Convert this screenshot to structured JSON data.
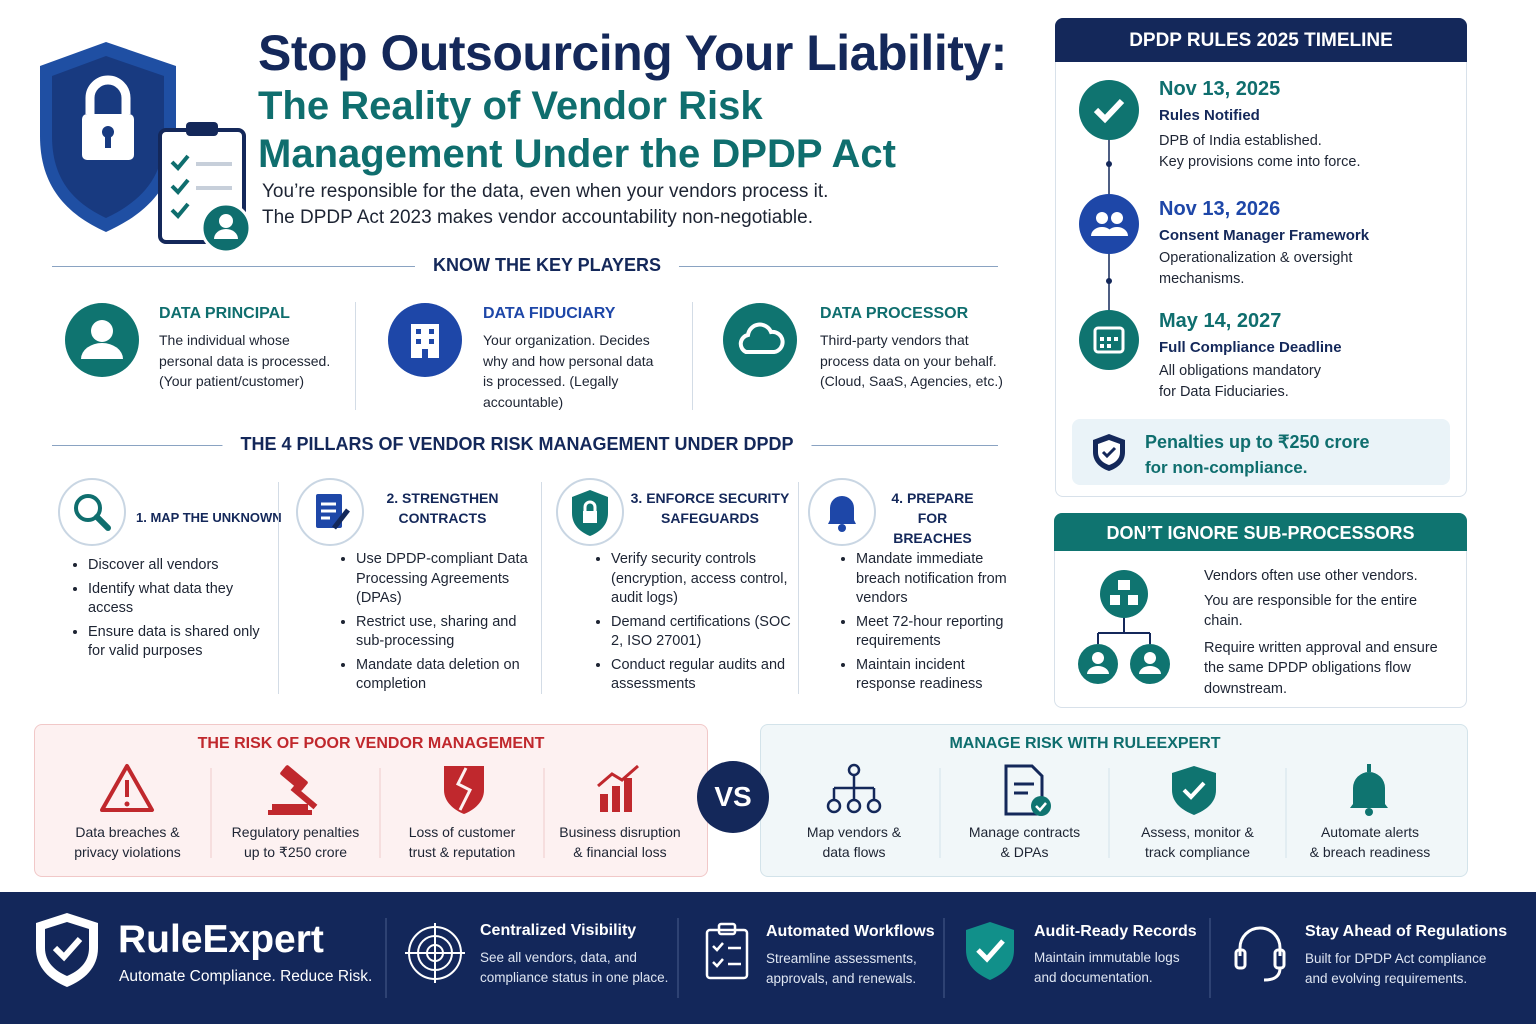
{
  "header": {
    "title": "Stop Outsourcing Your Liability:",
    "subtitle": "The Reality of Vendor Risk Management Under the DPDP Act",
    "intro": [
      "You’re responsible for the data, even when your vendors process it.",
      "The DPDP Act 2023 makes vendor accountability non-negotiable."
    ]
  },
  "key_players": {
    "heading": "KNOW THE KEY PLAYERS",
    "items": [
      {
        "title": "DATA PRINCIPAL",
        "text": "The individual whose personal data is processed.",
        "note": "(Your patient/customer)"
      },
      {
        "title": "DATA FIDUCIARY",
        "text": "Your organization. Decides why and how personal data is processed.",
        "note": "(Legally accountable)"
      },
      {
        "title": "DATA PROCESSOR",
        "text": "Third-party vendors that process data on your behalf.",
        "note": "(Cloud, SaaS, Agencies, etc.)"
      }
    ]
  },
  "pillars": {
    "heading": "THE 4 PILLARS OF VENDOR RISK MANAGEMENT UNDER DPDP",
    "items": [
      {
        "title": "1. MAP THE UNKNOWN",
        "bullets": [
          "Discover all vendors",
          "Identify what data they access",
          "Ensure data is shared only for valid purposes"
        ]
      },
      {
        "title": "2. STRENGTHEN CONTRACTS",
        "bullets": [
          "Use DPDP-compliant Data Processing Agreements (DPAs)",
          "Restrict use, sharing and sub-processing",
          "Mandate data deletion on completion"
        ]
      },
      {
        "title": "3. ENFORCE SECURITY SAFEGUARDS",
        "bullets": [
          "Verify security controls (encryption, access control, audit logs)",
          "Demand certifications (SOC 2, ISO 27001)",
          "Conduct regular audits and assessments"
        ]
      },
      {
        "title": "4. PREPARE FOR BREACHES",
        "bullets": [
          "Mandate immediate breach notification from vendors",
          "Meet 72-hour reporting requirements",
          "Maintain incident response readiness"
        ]
      }
    ]
  },
  "timeline": {
    "heading": "DPDP RULES 2025 TIMELINE",
    "events": [
      {
        "date": "Nov 13, 2025",
        "title": "Rules Notified",
        "lines": [
          "DPB of India established.",
          "Key provisions come into force."
        ]
      },
      {
        "date": "Nov 13, 2026",
        "title": "Consent Manager Framework",
        "lines": [
          "Operationalization & oversight",
          "mechanisms."
        ]
      },
      {
        "date": "May 14, 2027",
        "title": "Full Compliance Deadline",
        "lines": [
          "All obligations mandatory",
          "for Data Fiduciaries."
        ]
      }
    ],
    "penalty": [
      "Penalties up to ₹250 crore",
      "for non-compliance."
    ]
  },
  "subprocessors": {
    "heading": "DON’T IGNORE SUB-PROCESSORS",
    "paragraphs": [
      "Vendors often use other vendors.",
      "You are responsible for the entire chain.",
      "Require written approval and ensure the same DPDP obligations flow downstream."
    ]
  },
  "risk": {
    "heading": "THE RISK OF POOR VENDOR MANAGEMENT",
    "items": [
      [
        "Data breaches &",
        "privacy violations"
      ],
      [
        "Regulatory penalties",
        "up to ₹250 crore"
      ],
      [
        "Loss of customer",
        "trust & reputation"
      ],
      [
        "Business disruption",
        "& financial loss"
      ]
    ]
  },
  "vs": "VS",
  "manage": {
    "heading": "MANAGE RISK WITH RULEEXPERT",
    "items": [
      [
        "Map vendors &",
        "data flows"
      ],
      [
        "Manage contracts",
        "& DPAs"
      ],
      [
        "Assess, monitor &",
        "track compliance"
      ],
      [
        "Automate alerts",
        "& breach readiness"
      ]
    ]
  },
  "footer": {
    "brand": "RuleExpert",
    "tagline": "Automate Compliance. Reduce Risk.",
    "features": [
      {
        "title": "Centralized Visibility",
        "lines": [
          "See all vendors, data, and",
          "compliance status in one place."
        ]
      },
      {
        "title": "Automated Workflows",
        "lines": [
          "Streamline assessments,",
          "approvals, and renewals."
        ]
      },
      {
        "title": "Audit-Ready Records",
        "lines": [
          "Maintain immutable logs",
          "and documentation."
        ]
      },
      {
        "title": "Stay Ahead of Regulations",
        "lines": [
          "Built for DPDP Act compliance",
          "and evolving requirements."
        ]
      }
    ]
  }
}
